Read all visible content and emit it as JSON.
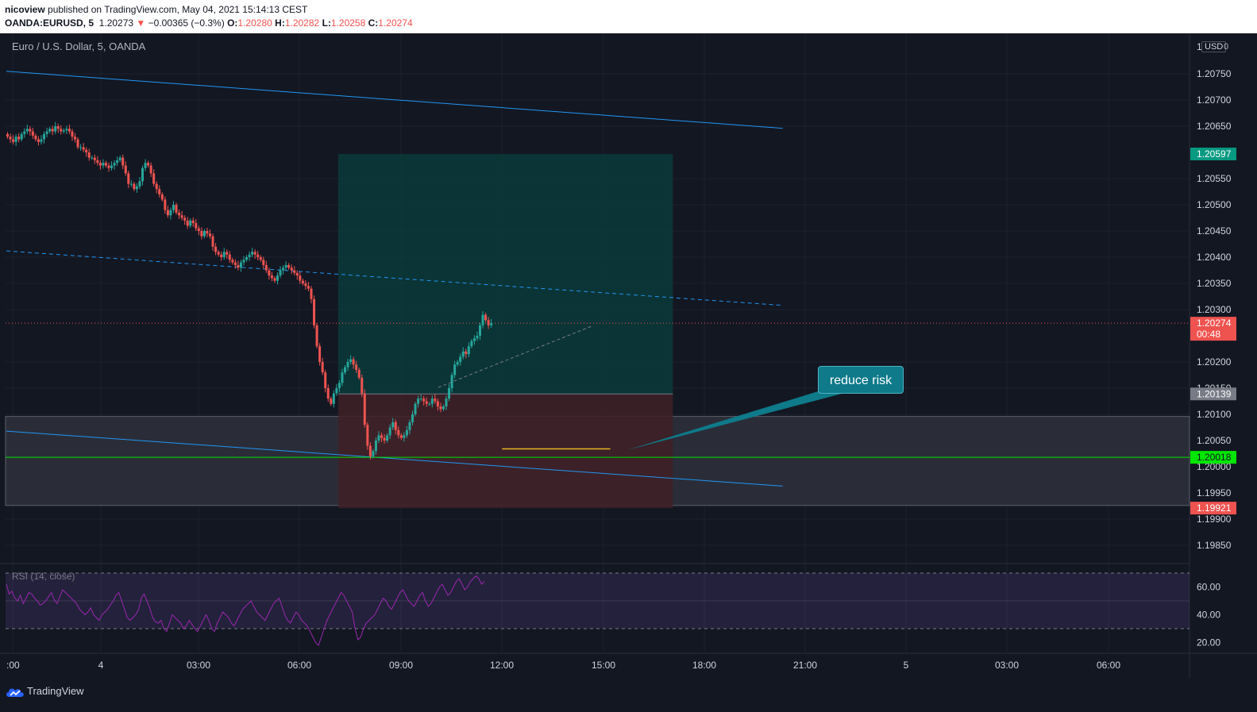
{
  "header": {
    "publisher": "nicoview",
    "published_text": "published on TradingView.com, May 04, 2021 15:14:13 CEST",
    "symbol": "OANDA:EURUSD, 5",
    "price": "1.20273",
    "change_arrow": "▼",
    "change": "−0.00365 (−0.3%)",
    "o_label": "O:",
    "o": "1.20280",
    "h_label": "H:",
    "h": "1.20282",
    "l_label": "L:",
    "l": "1.20258",
    "c_label": "C:",
    "c": "1.20274"
  },
  "pane": {
    "title": "Euro / U.S. Dollar, 5, OANDA",
    "currency_badge": "USD",
    "scale_mode": "1",
    "settings_glyph": "0"
  },
  "callout": {
    "text": "reduce risk"
  },
  "footer": {
    "brand": "TradingView",
    "logo_icon": "tradingview-cloud-icon"
  },
  "colors": {
    "background": "#131722",
    "up": "#26a69a",
    "down": "#ef5350",
    "trendline": "#2196f3",
    "green_level": "#00e600",
    "rsi_line": "#9c27b0",
    "target_zone": "#0b3a3a",
    "stop_zone": "#3f2026"
  },
  "chart_data": {
    "type": "candlestick",
    "symbol": "EURUSD",
    "timeframe": "5",
    "x_ticks": [
      ":00",
      "4",
      "03:00",
      "06:00",
      "09:00",
      "12:00",
      "15:00",
      "18:00",
      "21:00",
      "5",
      "03:00",
      "06:00"
    ],
    "y_ticks": [
      "1.20750",
      "1.20700",
      "1.20650",
      "1.20550",
      "1.20500",
      "1.20450",
      "1.20400",
      "1.20350",
      "1.20300",
      "1.20200",
      "1.20150",
      "1.20100",
      "1.20050",
      "1.20000",
      "1.19950",
      "1.19900",
      "1.19850"
    ],
    "ylim": [
      1.1981,
      1.2082
    ],
    "axis_top_label": "1",
    "price_labels": [
      {
        "value": "1.20597",
        "kind": "target"
      },
      {
        "value": "1.20274",
        "kind": "last",
        "countdown": "00:48"
      },
      {
        "value": "1.20139",
        "kind": "entry"
      },
      {
        "value": "1.20018",
        "kind": "support"
      },
      {
        "value": "1.19921",
        "kind": "stop"
      }
    ],
    "long_position": {
      "entry": 1.20139,
      "target": 1.20597,
      "stop": 1.19921,
      "start": "09:50",
      "end": "19:45"
    },
    "zone": {
      "from": 1.19926,
      "to": 1.20096
    },
    "support_level": 1.20018,
    "last_price": 1.20274,
    "channel": {
      "upper": [
        [
          "00:00",
          1.20755
        ],
        [
          "23:00",
          1.20646
        ]
      ],
      "middle": [
        [
          "00:00",
          1.20412
        ],
        [
          "23:00",
          1.20308
        ]
      ],
      "lower": [
        [
          "00:00",
          1.20068
        ],
        [
          "23:00",
          1.19963
        ]
      ]
    },
    "risk_line": {
      "value": 1.20034,
      "from": "11:35",
      "to": "14:05"
    },
    "close_series": {
      "start": "00:00",
      "interval_min": 5,
      "values": [
        1.2063,
        1.20625,
        1.2062,
        1.2063,
        1.20625,
        1.20635,
        1.2064,
        1.20645,
        1.2064,
        1.20632,
        1.20625,
        1.2062,
        1.20625,
        1.20635,
        1.2064,
        1.20645,
        1.2064,
        1.2065,
        1.20645,
        1.2064,
        1.20642,
        1.20645,
        1.2064,
        1.2063,
        1.20625,
        1.2061,
        1.2061,
        1.20605,
        1.206,
        1.2059,
        1.2059,
        1.20585,
        1.2058,
        1.20575,
        1.2058,
        1.20575,
        1.2057,
        1.20575,
        1.2058,
        1.20585,
        1.2059,
        1.20575,
        1.2056,
        1.2054,
        1.2054,
        1.2053,
        1.20535,
        1.20545,
        1.2057,
        1.2058,
        1.20575,
        1.2056,
        1.2054,
        1.2053,
        1.2052,
        1.2051,
        1.2049,
        1.2048,
        1.2049,
        1.205,
        1.20485,
        1.2048,
        1.20475,
        1.2047,
        1.2046,
        1.2047,
        1.20465,
        1.20455,
        1.2045,
        1.2044,
        1.2045,
        1.20445,
        1.2044,
        1.2042,
        1.2041,
        1.20405,
        1.204,
        1.2041,
        1.20405,
        1.20395,
        1.2039,
        1.20385,
        1.2038,
        1.2039,
        1.20395,
        1.204,
        1.20405,
        1.2041,
        1.20405,
        1.204,
        1.20395,
        1.20385,
        1.20375,
        1.20365,
        1.2036,
        1.20355,
        1.20365,
        1.20375,
        1.2038,
        1.20385,
        1.2038,
        1.20375,
        1.2037,
        1.20365,
        1.20355,
        1.2035,
        1.20345,
        1.2034,
        1.2032,
        1.2027,
        1.2023,
        1.202,
        1.2018,
        1.2015,
        1.2013,
        1.2012,
        1.2014,
        1.2015,
        1.2016,
        1.2018,
        1.2019,
        1.202,
        1.20205,
        1.20195,
        1.20185,
        1.2017,
        1.2014,
        1.2008,
        1.2004,
        1.2002,
        1.2003,
        1.2005,
        1.2006,
        1.20055,
        1.2005,
        1.2006,
        1.20075,
        1.20085,
        1.2007,
        1.2006,
        1.20055,
        1.2006,
        1.2007,
        1.20085,
        1.201,
        1.2012,
        1.2013,
        1.2013,
        1.20125,
        1.2012,
        1.2012,
        1.2013,
        1.20125,
        1.20115,
        1.2011,
        1.20115,
        1.2013,
        1.2015,
        1.20175,
        1.20195,
        1.202,
        1.2021,
        1.2022,
        1.20215,
        1.2023,
        1.2024,
        1.20245,
        1.2025,
        1.2027,
        1.2029,
        1.2028,
        1.2027,
        1.20274
      ]
    },
    "rsi": {
      "label": "RSI (14, close)",
      "ticks": [
        "60.00",
        "40.00",
        "20.00"
      ],
      "ylim": [
        10,
        75
      ],
      "bands": [
        30,
        70
      ],
      "values": [
        62,
        55,
        57,
        52,
        50,
        54,
        48,
        52,
        56,
        55,
        52,
        50,
        47,
        48,
        50,
        53,
        56,
        51,
        48,
        53,
        58,
        56,
        54,
        52,
        50,
        48,
        44,
        42,
        40,
        42,
        45,
        40,
        38,
        36,
        40,
        42,
        44,
        47,
        50,
        54,
        56,
        50,
        44,
        38,
        36,
        38,
        40,
        44,
        52,
        55,
        50,
        45,
        38,
        35,
        34,
        36,
        30,
        28,
        34,
        40,
        38,
        36,
        34,
        30,
        32,
        36,
        33,
        30,
        28,
        32,
        36,
        40,
        36,
        30,
        28,
        34,
        38,
        42,
        40,
        38,
        34,
        32,
        36,
        40,
        44,
        46,
        48,
        50,
        46,
        42,
        40,
        38,
        36,
        40,
        44,
        48,
        50,
        52,
        46,
        40,
        36,
        34,
        38,
        42,
        40,
        36,
        34,
        32,
        28,
        24,
        20,
        18,
        24,
        30,
        36,
        40,
        44,
        48,
        52,
        56,
        54,
        50,
        46,
        42,
        30,
        22,
        24,
        30,
        34,
        36,
        38,
        40,
        44,
        48,
        52,
        50,
        46,
        44,
        48,
        52,
        56,
        58,
        54,
        50,
        48,
        46,
        50,
        54,
        56,
        50,
        46,
        48,
        52,
        56,
        60,
        62,
        58,
        54,
        56,
        60,
        64,
        66,
        62,
        58,
        60,
        64,
        66,
        68,
        66,
        62,
        64
      ]
    }
  }
}
